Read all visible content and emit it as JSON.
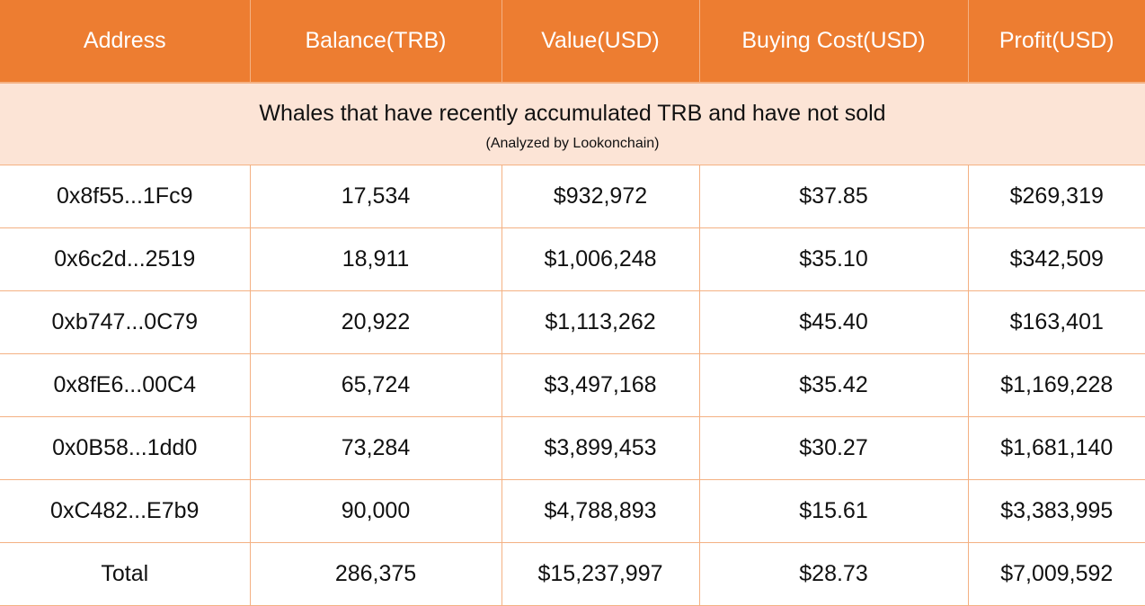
{
  "colors": {
    "header_bg": "#ED7D31",
    "subheader_bg": "#FCE4D6",
    "border": "#F4B183"
  },
  "headers": [
    "Address",
    "Balance(TRB)",
    "Value(USD)",
    "Buying Cost(USD)",
    "Profit(USD)"
  ],
  "subtitle": "Whales that have recently accumulated TRB and have not sold",
  "note": "(Analyzed by Lookonchain)",
  "rows": [
    [
      "0x8f55...1Fc9",
      "17,534",
      "$932,972",
      "$37.85",
      "$269,319"
    ],
    [
      "0x6c2d...2519",
      "18,911",
      "$1,006,248",
      "$35.10",
      "$342,509"
    ],
    [
      "0xb747...0C79",
      "20,922",
      "$1,113,262",
      "$45.40",
      "$163,401"
    ],
    [
      "0x8fE6...00C4",
      "65,724",
      "$3,497,168",
      "$35.42",
      "$1,169,228"
    ],
    [
      "0x0B58...1dd0",
      "73,284",
      "$3,899,453",
      "$30.27",
      "$1,681,140"
    ],
    [
      "0xC482...E7b9",
      "90,000",
      "$4,788,893",
      "$15.61",
      "$3,383,995"
    ],
    [
      "Total",
      "286,375",
      "$15,237,997",
      "$28.73",
      "$7,009,592"
    ]
  ]
}
